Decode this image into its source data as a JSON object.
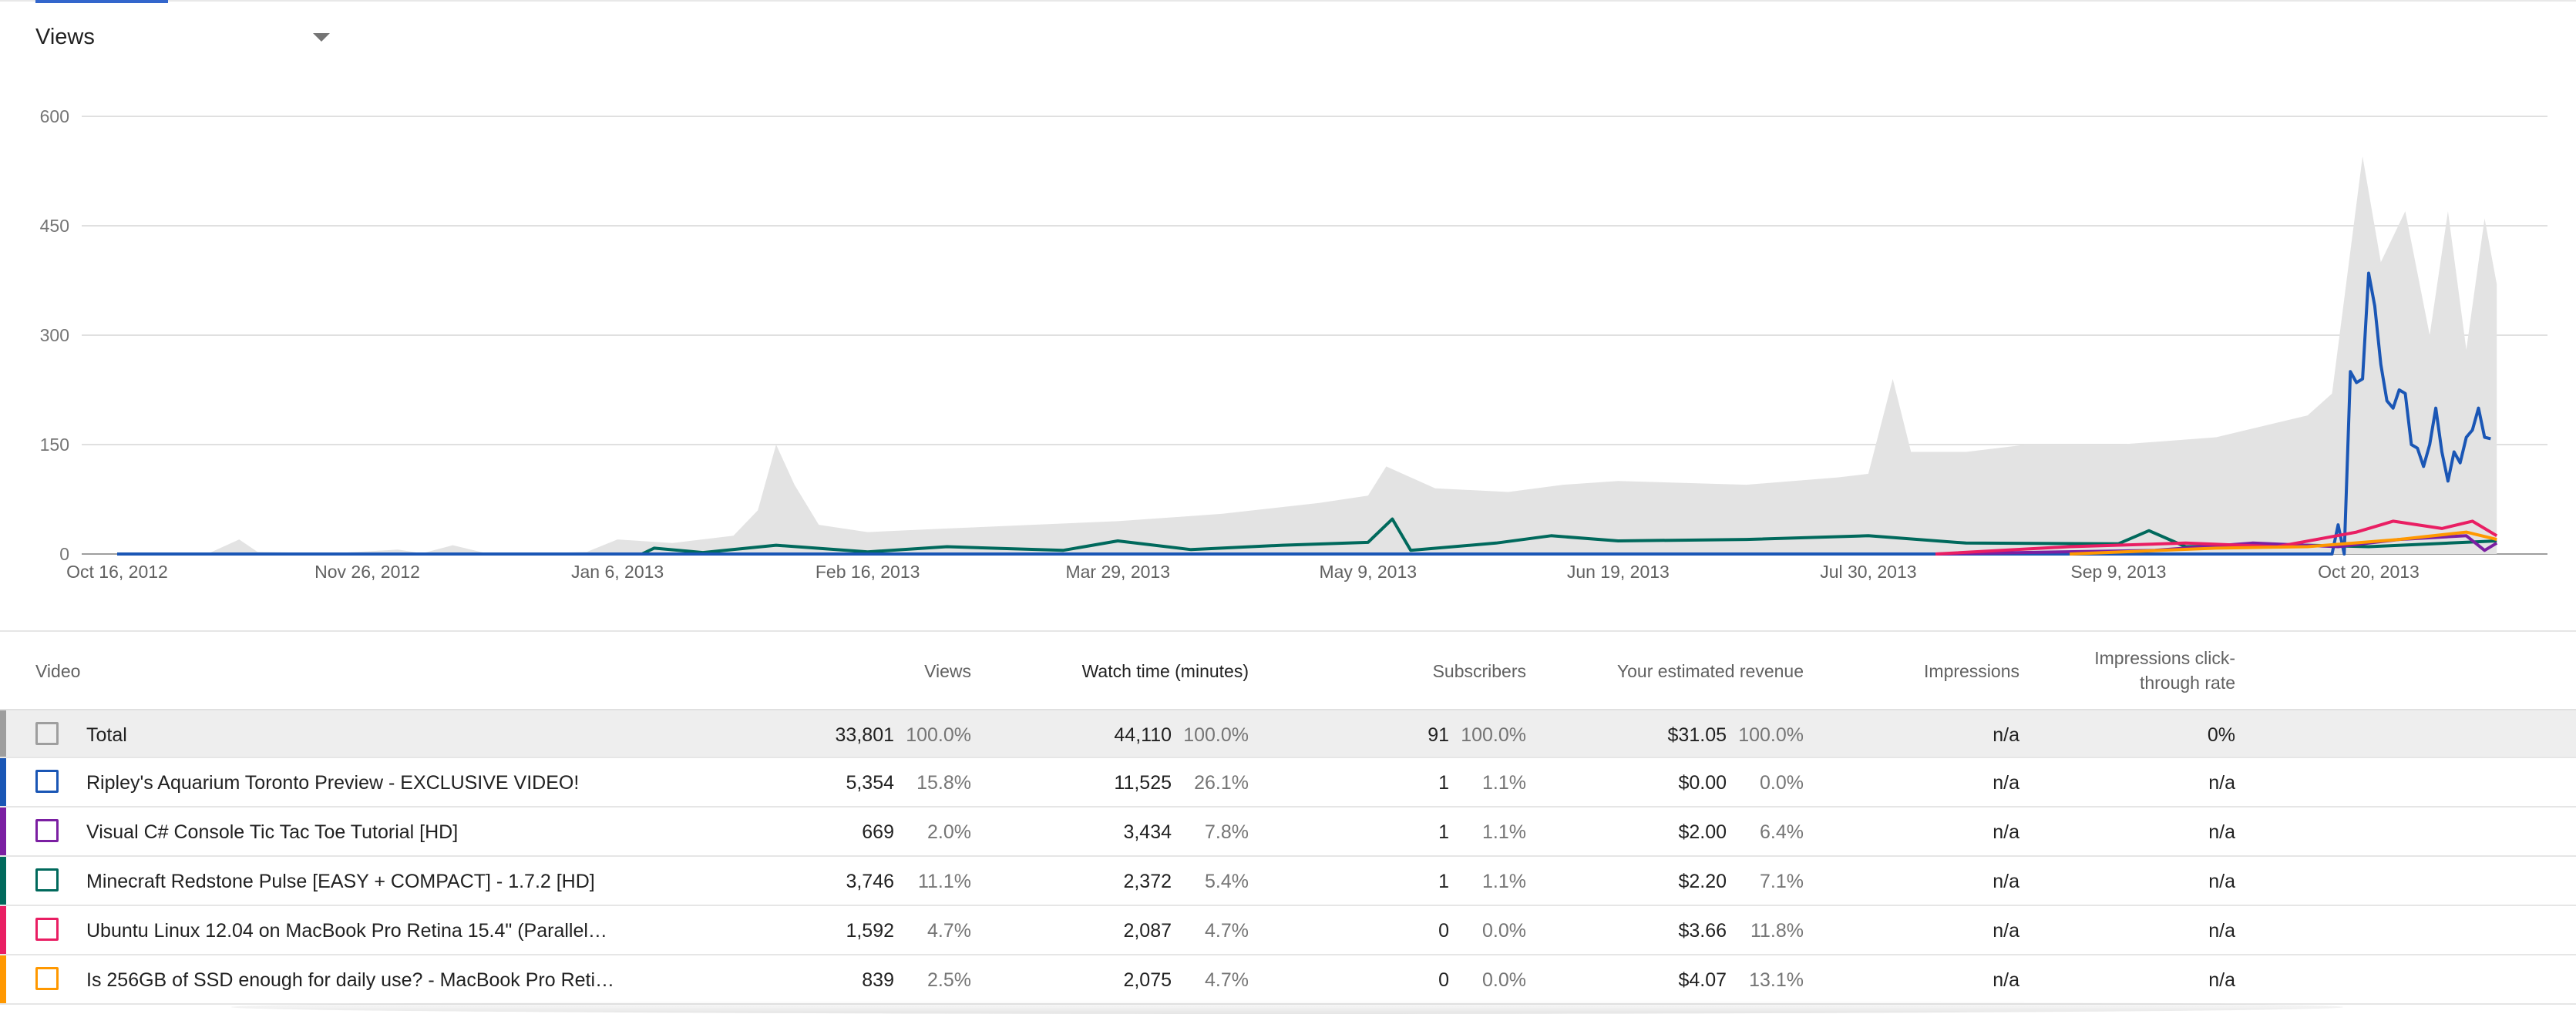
{
  "metric_selector": {
    "label": "Views"
  },
  "colors": {
    "total_area": "#e3e3e3",
    "grid": "#e0e0e0",
    "ripley": "#1a56b5",
    "csharp": "#7b1fa2",
    "minecraft": "#00695c",
    "ubuntu": "#e91e63",
    "ssd": "#ff9800",
    "total_checkbox": "#9e9e9e"
  },
  "chart_data": {
    "type": "line",
    "y_ticks": [
      "600",
      "450",
      "300",
      "150",
      "0"
    ],
    "ylim": [
      0,
      600
    ],
    "x_ticks": [
      "Oct 16, 2012",
      "Nov 26, 2012",
      "Jan 6, 2013",
      "Feb 16, 2013",
      "Mar 29, 2013",
      "May 9, 2013",
      "Jun 19, 2013",
      "Jul 30, 2013",
      "Sep 9, 2013",
      "Oct 20, 2013"
    ],
    "xlim": [
      "2012-10-16",
      "2013-11-10"
    ],
    "grid": true,
    "total_area": [
      [
        "2012-10-16",
        0
      ],
      [
        "2012-10-31",
        1
      ],
      [
        "2012-11-05",
        20
      ],
      [
        "2012-11-08",
        3
      ],
      [
        "2012-11-20",
        1
      ],
      [
        "2012-12-01",
        6
      ],
      [
        "2012-12-05",
        1
      ],
      [
        "2012-12-10",
        12
      ],
      [
        "2012-12-15",
        2
      ],
      [
        "2012-12-20",
        0
      ],
      [
        "2013-01-01",
        3
      ],
      [
        "2013-01-06",
        20
      ],
      [
        "2013-01-15",
        15
      ],
      [
        "2013-01-25",
        25
      ],
      [
        "2013-01-29",
        60
      ],
      [
        "2013-02-01",
        150
      ],
      [
        "2013-02-04",
        95
      ],
      [
        "2013-02-08",
        40
      ],
      [
        "2013-02-16",
        30
      ],
      [
        "2013-03-01",
        35
      ],
      [
        "2013-03-15",
        40
      ],
      [
        "2013-03-29",
        45
      ],
      [
        "2013-04-15",
        55
      ],
      [
        "2013-05-01",
        70
      ],
      [
        "2013-05-09",
        80
      ],
      [
        "2013-05-12",
        120
      ],
      [
        "2013-05-20",
        90
      ],
      [
        "2013-06-01",
        85
      ],
      [
        "2013-06-10",
        95
      ],
      [
        "2013-06-19",
        100
      ],
      [
        "2013-07-10",
        95
      ],
      [
        "2013-07-25",
        105
      ],
      [
        "2013-07-30",
        110
      ],
      [
        "2013-08-03",
        240
      ],
      [
        "2013-08-06",
        140
      ],
      [
        "2013-08-15",
        140
      ],
      [
        "2013-08-25",
        150
      ],
      [
        "2013-09-09",
        150
      ],
      [
        "2013-09-25",
        160
      ],
      [
        "2013-10-10",
        190
      ],
      [
        "2013-10-14",
        220
      ],
      [
        "2013-10-19",
        545
      ],
      [
        "2013-10-22",
        400
      ],
      [
        "2013-10-26",
        470
      ],
      [
        "2013-10-30",
        300
      ],
      [
        "2013-11-02",
        470
      ],
      [
        "2013-11-05",
        280
      ],
      [
        "2013-11-08",
        460
      ],
      [
        "2013-11-10",
        370
      ]
    ],
    "series": [
      {
        "name": "Minecraft Redstone Pulse [EASY + COMPACT] - 1.7.2 [HD]",
        "points": [
          [
            "2012-10-16",
            0
          ],
          [
            "2013-01-10",
            0
          ],
          [
            "2013-01-12",
            8
          ],
          [
            "2013-01-20",
            2
          ],
          [
            "2013-02-01",
            12
          ],
          [
            "2013-02-16",
            3
          ],
          [
            "2013-03-01",
            10
          ],
          [
            "2013-03-20",
            5
          ],
          [
            "2013-03-29",
            18
          ],
          [
            "2013-04-10",
            6
          ],
          [
            "2013-04-25",
            12
          ],
          [
            "2013-05-09",
            16
          ],
          [
            "2013-05-13",
            48
          ],
          [
            "2013-05-16",
            5
          ],
          [
            "2013-05-30",
            15
          ],
          [
            "2013-06-08",
            25
          ],
          [
            "2013-06-19",
            18
          ],
          [
            "2013-07-10",
            20
          ],
          [
            "2013-07-30",
            25
          ],
          [
            "2013-08-15",
            15
          ],
          [
            "2013-09-09",
            14
          ],
          [
            "2013-09-14",
            32
          ],
          [
            "2013-09-20",
            10
          ],
          [
            "2013-10-10",
            12
          ],
          [
            "2013-10-20",
            10
          ],
          [
            "2013-11-10",
            18
          ]
        ]
      },
      {
        "name": "Ripley's Aquarium Toronto Preview - EXCLUSIVE VIDEO!",
        "points": [
          [
            "2012-10-16",
            0
          ],
          [
            "2013-10-14",
            0
          ],
          [
            "2013-10-15",
            40
          ],
          [
            "2013-10-16",
            0
          ],
          [
            "2013-10-17",
            250
          ],
          [
            "2013-10-18",
            235
          ],
          [
            "2013-10-19",
            240
          ],
          [
            "2013-10-20",
            385
          ],
          [
            "2013-10-21",
            340
          ],
          [
            "2013-10-22",
            260
          ],
          [
            "2013-10-23",
            210
          ],
          [
            "2013-10-24",
            200
          ],
          [
            "2013-10-25",
            225
          ],
          [
            "2013-10-26",
            220
          ],
          [
            "2013-10-27",
            150
          ],
          [
            "2013-10-28",
            145
          ],
          [
            "2013-10-29",
            120
          ],
          [
            "2013-10-30",
            150
          ],
          [
            "2013-10-31",
            200
          ],
          [
            "2013-11-01",
            140
          ],
          [
            "2013-11-02",
            100
          ],
          [
            "2013-11-03",
            140
          ],
          [
            "2013-11-04",
            125
          ],
          [
            "2013-11-05",
            160
          ],
          [
            "2013-11-06",
            170
          ],
          [
            "2013-11-07",
            200
          ],
          [
            "2013-11-08",
            160
          ],
          [
            "2013-11-09",
            158
          ]
        ]
      },
      {
        "name": "Visual C# Console Tic Tac Toe Tutorial [HD]",
        "points": [
          [
            "2013-08-10",
            0
          ],
          [
            "2013-09-15",
            5
          ],
          [
            "2013-10-01",
            15
          ],
          [
            "2013-10-15",
            10
          ],
          [
            "2013-10-25",
            20
          ],
          [
            "2013-11-05",
            25
          ],
          [
            "2013-11-08",
            5
          ],
          [
            "2013-11-10",
            15
          ]
        ]
      },
      {
        "name": "Ubuntu Linux 12.04 on MacBook Pro Retina 15.4\" (Parallel…",
        "points": [
          [
            "2013-08-10",
            0
          ],
          [
            "2013-09-01",
            10
          ],
          [
            "2013-09-20",
            15
          ],
          [
            "2013-10-05",
            10
          ],
          [
            "2013-10-18",
            30
          ],
          [
            "2013-10-24",
            45
          ],
          [
            "2013-11-01",
            35
          ],
          [
            "2013-11-06",
            45
          ],
          [
            "2013-11-10",
            25
          ]
        ]
      },
      {
        "name": "Is 256GB of SSD enough for daily use? - MacBook Pro Reti…",
        "points": [
          [
            "2013-09-01",
            0
          ],
          [
            "2013-09-25",
            8
          ],
          [
            "2013-10-10",
            10
          ],
          [
            "2013-10-25",
            20
          ],
          [
            "2013-11-05",
            30
          ],
          [
            "2013-11-10",
            20
          ]
        ]
      }
    ]
  },
  "table": {
    "headers": {
      "video": "Video",
      "views": "Views",
      "watch_time": "Watch time (minutes)",
      "subscribers": "Subscribers",
      "revenue": "Your estimated revenue",
      "impressions": "Impressions",
      "ctr_line1": "Impressions click-",
      "ctr_line2": "through rate"
    },
    "rows": [
      {
        "title": "Total",
        "views": "33,801",
        "views_pct": "100.0%",
        "watch": "44,110",
        "watch_pct": "100.0%",
        "subs": "91",
        "subs_pct": "100.0%",
        "revenue": "$31.05",
        "revenue_pct": "100.0%",
        "impressions": "n/a",
        "ctr": "0%"
      },
      {
        "title": "Ripley's Aquarium Toronto Preview - EXCLUSIVE VIDEO!",
        "views": "5,354",
        "views_pct": "15.8%",
        "watch": "11,525",
        "watch_pct": "26.1%",
        "subs": "1",
        "subs_pct": "1.1%",
        "revenue": "$0.00",
        "revenue_pct": "0.0%",
        "impressions": "n/a",
        "ctr": "n/a"
      },
      {
        "title": "Visual C# Console Tic Tac Toe Tutorial [HD]",
        "views": "669",
        "views_pct": "2.0%",
        "watch": "3,434",
        "watch_pct": "7.8%",
        "subs": "1",
        "subs_pct": "1.1%",
        "revenue": "$2.00",
        "revenue_pct": "6.4%",
        "impressions": "n/a",
        "ctr": "n/a"
      },
      {
        "title": "Minecraft Redstone Pulse [EASY + COMPACT] - 1.7.2 [HD]",
        "views": "3,746",
        "views_pct": "11.1%",
        "watch": "2,372",
        "watch_pct": "5.4%",
        "subs": "1",
        "subs_pct": "1.1%",
        "revenue": "$2.20",
        "revenue_pct": "7.1%",
        "impressions": "n/a",
        "ctr": "n/a"
      },
      {
        "title": "Ubuntu Linux 12.04 on MacBook Pro Retina 15.4\" (Parallel…",
        "views": "1,592",
        "views_pct": "4.7%",
        "watch": "2,087",
        "watch_pct": "4.7%",
        "subs": "0",
        "subs_pct": "0.0%",
        "revenue": "$3.66",
        "revenue_pct": "11.8%",
        "impressions": "n/a",
        "ctr": "n/a"
      },
      {
        "title": "Is 256GB of SSD enough for daily use? - MacBook Pro Reti…",
        "views": "839",
        "views_pct": "2.5%",
        "watch": "2,075",
        "watch_pct": "4.7%",
        "subs": "0",
        "subs_pct": "0.0%",
        "revenue": "$4.07",
        "revenue_pct": "13.1%",
        "impressions": "n/a",
        "ctr": "n/a"
      }
    ]
  }
}
